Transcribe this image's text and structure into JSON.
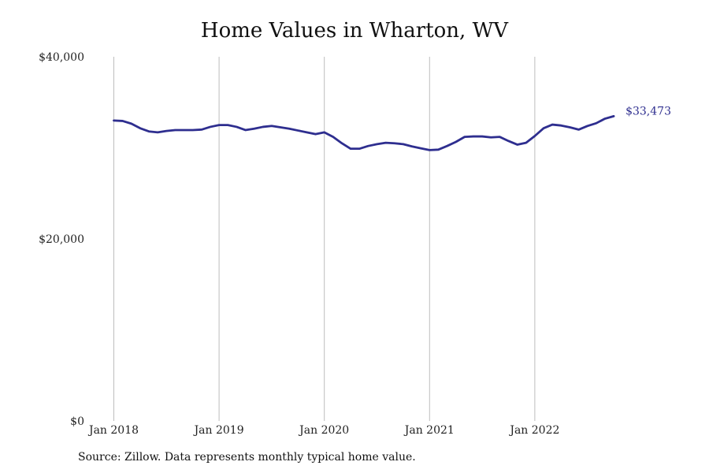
{
  "chart_data": {
    "type": "line",
    "title": "Home Values in Wharton, WV",
    "xlabel": "",
    "ylabel": "",
    "x_start": "2018-01",
    "x_ticks": [
      {
        "label": "Jan 2018",
        "month_index": 0
      },
      {
        "label": "Jan 2019",
        "month_index": 12
      },
      {
        "label": "Jan 2020",
        "month_index": 24
      },
      {
        "label": "Jan 2021",
        "month_index": 36
      },
      {
        "label": "Jan 2022",
        "month_index": 48
      }
    ],
    "y_ticks": [
      {
        "label": "$0",
        "value": 0
      },
      {
        "label": "$20,000",
        "value": 20000
      },
      {
        "label": "$40,000",
        "value": 40000
      }
    ],
    "ylim": [
      0,
      40000
    ],
    "grid": "vertical lines at January of each year",
    "series": [
      {
        "color": "#2e2e8f",
        "values": [
          33000,
          32950,
          32650,
          32150,
          31800,
          31700,
          31850,
          31950,
          31950,
          31950,
          32000,
          32300,
          32500,
          32500,
          32300,
          31950,
          32100,
          32300,
          32400,
          32250,
          32100,
          31900,
          31700,
          31500,
          31700,
          31200,
          30500,
          29900,
          29900,
          30200,
          30400,
          30550,
          30500,
          30400,
          30150,
          29950,
          29750,
          29800,
          30200,
          30650,
          31200,
          31250,
          31250,
          31150,
          31200,
          30750,
          30350,
          30550,
          31300,
          32150,
          32550,
          32450,
          32250,
          32000,
          32400,
          32700,
          33200,
          33473
        ],
        "end_label": "$33,473"
      }
    ]
  },
  "footer": {
    "source": "Source: Zillow. Data represents monthly typical home value."
  }
}
